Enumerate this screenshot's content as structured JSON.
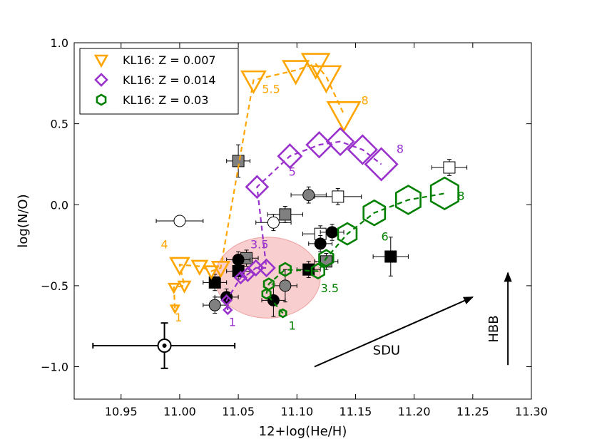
{
  "chart_data": {
    "type": "scatter",
    "title": "",
    "xlabel": "12+log(He/H)",
    "ylabel": "log(N/O)",
    "xlim": [
      10.91,
      11.3
    ],
    "ylim": [
      -1.2,
      1.0
    ],
    "xticks": [
      "10.95",
      "11.00",
      "11.05",
      "11.10",
      "11.15",
      "11.20",
      "11.25",
      "11.30"
    ],
    "xtick_values": [
      10.95,
      11.0,
      11.05,
      11.1,
      11.15,
      11.2,
      11.25,
      11.3
    ],
    "yticks": [
      "1.0",
      "0.5",
      "0.0",
      "−0.5",
      "−1.0"
    ],
    "ytick_values": [
      1.0,
      0.5,
      0.0,
      -0.5,
      -1.0
    ],
    "grid": false,
    "legend_position": "top-left",
    "series": [
      {
        "name": "KL16: Z = 0.007",
        "marker": "triangle-down",
        "color": "#FFA500",
        "points": [
          {
            "x": 10.996,
            "y": -0.64,
            "m": 1
          },
          {
            "x": 10.995,
            "y": -0.51,
            "m": 1.5
          },
          {
            "x": 11.004,
            "y": -0.5,
            "m": 2
          },
          {
            "x": 11.0,
            "y": -0.37,
            "m": 4
          },
          {
            "x": 11.017,
            "y": -0.38,
            "m": 3
          },
          {
            "x": 11.027,
            "y": -0.41,
            "m": 2.5
          },
          {
            "x": 11.035,
            "y": -0.39,
            "m": 3.5
          },
          {
            "x": 11.063,
            "y": 0.77,
            "m": 5.5
          },
          {
            "x": 11.099,
            "y": 0.83,
            "m": 6
          },
          {
            "x": 11.116,
            "y": 0.87,
            "m": 6.5
          },
          {
            "x": 11.125,
            "y": 0.79,
            "m": 7
          },
          {
            "x": 11.14,
            "y": 0.56,
            "m": 8
          }
        ],
        "mass_labels": [
          {
            "text": "1",
            "x": 10.999,
            "y": -0.72
          },
          {
            "text": "4",
            "x": 10.987,
            "y": -0.27
          },
          {
            "text": "5.5",
            "x": 11.078,
            "y": 0.69
          },
          {
            "text": "8",
            "x": 11.158,
            "y": 0.62
          }
        ]
      },
      {
        "name": "KL16: Z = 0.014",
        "marker": "diamond",
        "color": "#9932CC",
        "points": [
          {
            "x": 11.041,
            "y": -0.65,
            "m": 1
          },
          {
            "x": 11.04,
            "y": -0.59,
            "m": 1.5
          },
          {
            "x": 11.052,
            "y": -0.45,
            "m": 2
          },
          {
            "x": 11.058,
            "y": -0.43,
            "m": 2.5
          },
          {
            "x": 11.065,
            "y": -0.39,
            "m": 3
          },
          {
            "x": 11.074,
            "y": -0.39,
            "m": 3.5
          },
          {
            "x": 11.066,
            "y": 0.11,
            "m": 5
          },
          {
            "x": 11.094,
            "y": 0.3,
            "m": 5.5
          },
          {
            "x": 11.119,
            "y": 0.37,
            "m": 6
          },
          {
            "x": 11.137,
            "y": 0.39,
            "m": 6.5
          },
          {
            "x": 11.156,
            "y": 0.34,
            "m": 7
          },
          {
            "x": 11.172,
            "y": 0.25,
            "m": 8
          }
        ],
        "mass_labels": [
          {
            "text": "1",
            "x": 11.045,
            "y": -0.75
          },
          {
            "text": "3.5",
            "x": 11.068,
            "y": -0.27
          },
          {
            "text": "5",
            "x": 11.096,
            "y": 0.18
          },
          {
            "text": "8",
            "x": 11.188,
            "y": 0.32
          }
        ]
      },
      {
        "name": "KL16: Z = 0.03",
        "marker": "hexagon",
        "color": "#008000",
        "points": [
          {
            "x": 11.088,
            "y": -0.67,
            "m": 1
          },
          {
            "x": 11.074,
            "y": -0.55,
            "m": 1.5
          },
          {
            "x": 11.076,
            "y": -0.49,
            "m": 2
          },
          {
            "x": 11.09,
            "y": -0.4,
            "m": 2.5
          },
          {
            "x": 11.118,
            "y": -0.41,
            "m": 3
          },
          {
            "x": 11.125,
            "y": -0.33,
            "m": 3.5
          },
          {
            "x": 11.143,
            "y": -0.18,
            "m": 5
          },
          {
            "x": 11.166,
            "y": -0.05,
            "m": 6
          },
          {
            "x": 11.195,
            "y": 0.03,
            "m": 7
          },
          {
            "x": 11.226,
            "y": 0.07,
            "m": 8
          }
        ],
        "mass_labels": [
          {
            "text": "1",
            "x": 11.096,
            "y": -0.77
          },
          {
            "text": "3.5",
            "x": 11.128,
            "y": -0.54
          },
          {
            "text": "6",
            "x": 11.175,
            "y": -0.22
          },
          {
            "text": "8",
            "x": 11.24,
            "y": 0.03
          }
        ]
      }
    ],
    "observations": [
      {
        "x": 11.05,
        "y": 0.27,
        "xerr": 0.01,
        "yerr": 0.1,
        "fill": "#808080",
        "marker": "square"
      },
      {
        "x": 11.23,
        "y": 0.23,
        "xerr": 0.015,
        "yerr": 0.05,
        "fill": "#ffffff",
        "marker": "square"
      },
      {
        "x": 11.135,
        "y": 0.05,
        "xerr": 0.02,
        "yerr": 0.05,
        "fill": "#ffffff",
        "marker": "square"
      },
      {
        "x": 11.09,
        "y": -0.06,
        "xerr": 0.015,
        "yerr": 0.05,
        "fill": "#808080",
        "marker": "square"
      },
      {
        "x": 11.12,
        "y": -0.18,
        "xerr": 0.015,
        "yerr": 0.05,
        "fill": "#ffffff",
        "marker": "square"
      },
      {
        "x": 11.057,
        "y": -0.33,
        "xerr": 0.01,
        "yerr": 0.05,
        "fill": "#808080",
        "marker": "square"
      },
      {
        "x": 11.125,
        "y": -0.35,
        "xerr": 0.01,
        "yerr": 0.05,
        "fill": "#808080",
        "marker": "square"
      },
      {
        "x": 11.18,
        "y": -0.32,
        "xerr": 0.015,
        "yerr": 0.12,
        "fill": "#000000",
        "marker": "square"
      },
      {
        "x": 11.05,
        "y": -0.41,
        "xerr": 0.01,
        "yerr": 0.05,
        "fill": "#000000",
        "marker": "square"
      },
      {
        "x": 11.03,
        "y": -0.48,
        "xerr": 0.01,
        "yerr": 0.05,
        "fill": "#000000",
        "marker": "square"
      },
      {
        "x": 11.11,
        "y": -0.4,
        "xerr": 0.01,
        "yerr": 0.05,
        "fill": "#000000",
        "marker": "square"
      },
      {
        "x": 11.0,
        "y": -0.1,
        "xerr": 0.02,
        "yerr": 0.03,
        "fill": "#ffffff",
        "marker": "circle"
      },
      {
        "x": 11.08,
        "y": -0.11,
        "xerr": 0.015,
        "yerr": 0.05,
        "fill": "#ffffff",
        "marker": "circle"
      },
      {
        "x": 11.11,
        "y": 0.06,
        "xerr": 0.015,
        "yerr": 0.05,
        "fill": "#808080",
        "marker": "circle"
      },
      {
        "x": 11.12,
        "y": -0.24,
        "xerr": 0.01,
        "yerr": 0.05,
        "fill": "#000000",
        "marker": "circle"
      },
      {
        "x": 11.13,
        "y": -0.17,
        "xerr": 0.01,
        "yerr": 0.05,
        "fill": "#000000",
        "marker": "circle"
      },
      {
        "x": 11.05,
        "y": -0.34,
        "xerr": 0.01,
        "yerr": 0.05,
        "fill": "#000000",
        "marker": "circle"
      },
      {
        "x": 11.04,
        "y": -0.57,
        "xerr": 0.01,
        "yerr": 0.05,
        "fill": "#000000",
        "marker": "circle"
      },
      {
        "x": 11.03,
        "y": -0.62,
        "xerr": 0.01,
        "yerr": 0.05,
        "fill": "#808080",
        "marker": "circle"
      },
      {
        "x": 11.08,
        "y": -0.59,
        "xerr": 0.01,
        "yerr": 0.1,
        "fill": "#000000",
        "marker": "circle"
      },
      {
        "x": 11.09,
        "y": -0.5,
        "xerr": 0.01,
        "yerr": 0.1,
        "fill": "#808080",
        "marker": "circle"
      }
    ],
    "sun": {
      "x": 10.987,
      "y": -0.87,
      "xerr_minus": 0.061,
      "xerr_plus": 0.06,
      "yerr": 0.14
    },
    "ellipse": {
      "cx": 11.075,
      "cy": -0.45,
      "rx": 0.045,
      "ry": 0.25,
      "fill": "#F4A6A6"
    },
    "arrows": [
      {
        "label": "SDU",
        "x1": 11.115,
        "y1": -1.0,
        "x2": 11.25,
        "y2": -0.57
      },
      {
        "label": "HBB",
        "x1": 11.28,
        "y1": -0.99,
        "x2": 11.28,
        "y2": -0.42
      }
    ]
  }
}
